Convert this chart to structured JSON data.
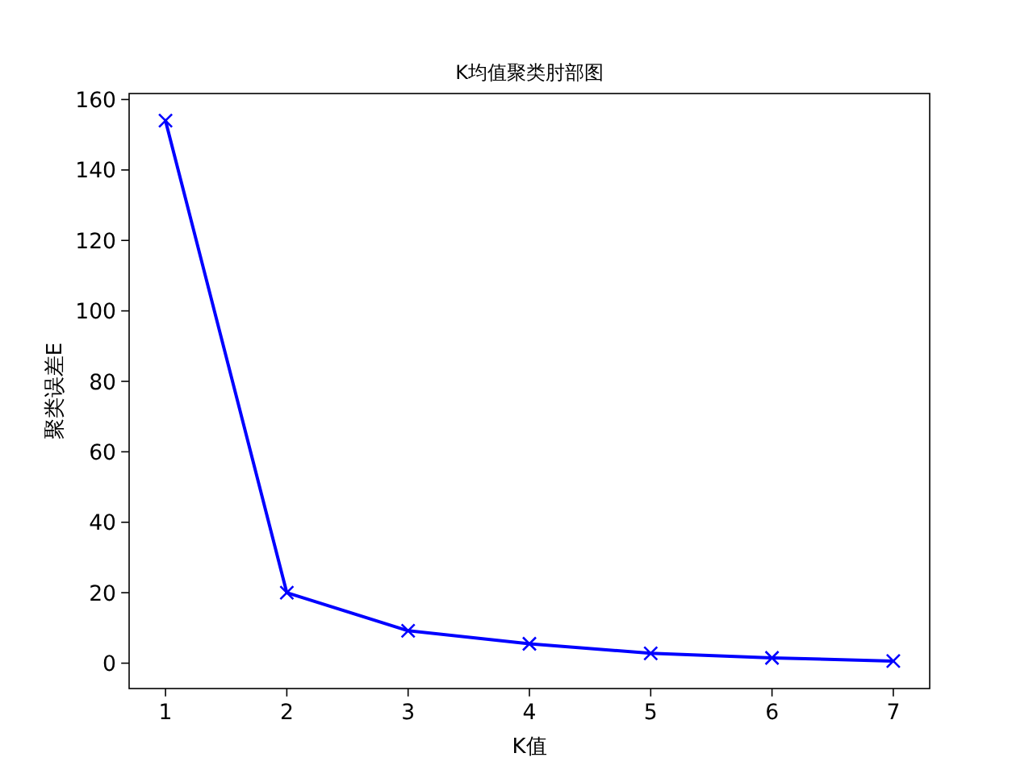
{
  "chart_data": {
    "type": "line",
    "title": "K均值聚类肘部图",
    "xlabel": "K值",
    "ylabel": "聚类误差E",
    "x": [
      1,
      2,
      3,
      4,
      5,
      6,
      7
    ],
    "series": [
      {
        "color": "#0000ff",
        "values": [
          154,
          20,
          9.2,
          5.5,
          2.8,
          1.5,
          0.6
        ]
      }
    ],
    "marker": "cross",
    "line_style": "solid",
    "grid": false,
    "xlim": [
      0.7,
      7.3
    ],
    "xticks": [
      1,
      2,
      3,
      4,
      5,
      6,
      7
    ],
    "ylim": [
      -7.2,
      161.7
    ],
    "yticks": [
      0,
      20,
      40,
      60,
      80,
      100,
      120,
      140,
      160
    ]
  }
}
